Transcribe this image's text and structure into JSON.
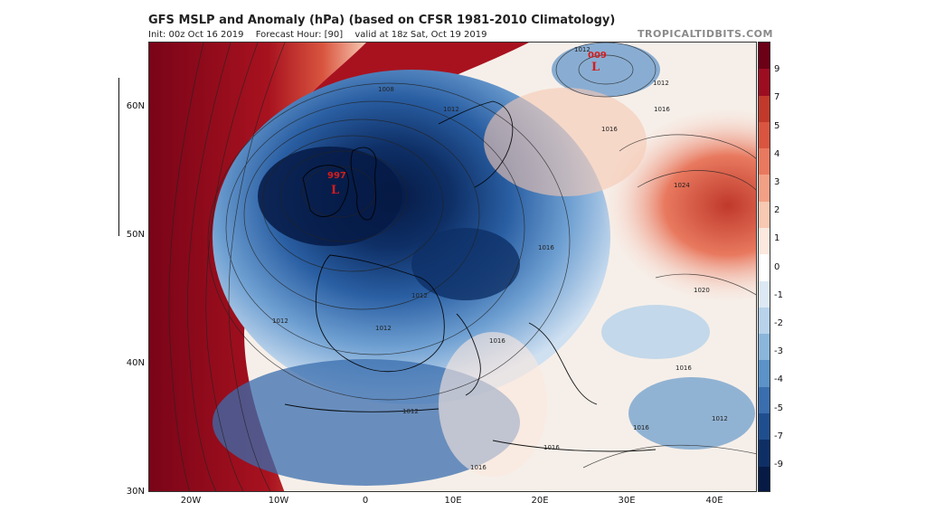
{
  "header": {
    "title": "GFS MSLP and Anomaly (hPa) (based on CFSR 1981-2010 Climatology)",
    "init": "Init: 00z Oct 16 2019",
    "forecast_hour": "Forecast Hour: [90]",
    "valid": "valid at 18z Sat, Oct 19 2019",
    "brand": "TROPICALTIDBITS.COM"
  },
  "axes": {
    "latitudes": [
      "60N",
      "50N",
      "40N",
      "30N"
    ],
    "longitudes": [
      "20W",
      "10W",
      "0",
      "10E",
      "20E",
      "30E",
      "40E"
    ]
  },
  "colorbar": {
    "labels": [
      "9",
      "7",
      "5",
      "4",
      "3",
      "2",
      "1",
      "0",
      "-1",
      "-2",
      "-3",
      "-4",
      "-5",
      "-7",
      "-9"
    ],
    "colors": [
      "#6b0016",
      "#9c0d22",
      "#c0392b",
      "#d9553f",
      "#e8795f",
      "#f2a085",
      "#f7c8b2",
      "#fbe8de",
      "#ffffff",
      "#dce9f5",
      "#b7d2ea",
      "#8bb6db",
      "#5b92c7",
      "#3a6eae",
      "#1f4e8f",
      "#0e2f66",
      "#061a45"
    ]
  },
  "pressure_centers": [
    {
      "type": "L",
      "value": "997"
    },
    {
      "type": "L",
      "value": "009"
    }
  ],
  "isobar_labels": [
    "1008",
    "1012",
    "1012",
    "1016",
    "1016",
    "1012",
    "1016",
    "1012",
    "1016",
    "1024",
    "1020",
    "1016",
    "1012",
    "1016",
    "1012",
    "1016",
    "1016",
    "1012",
    "1012"
  ],
  "icons": {
    "low_symbol": "low-pressure-L"
  }
}
